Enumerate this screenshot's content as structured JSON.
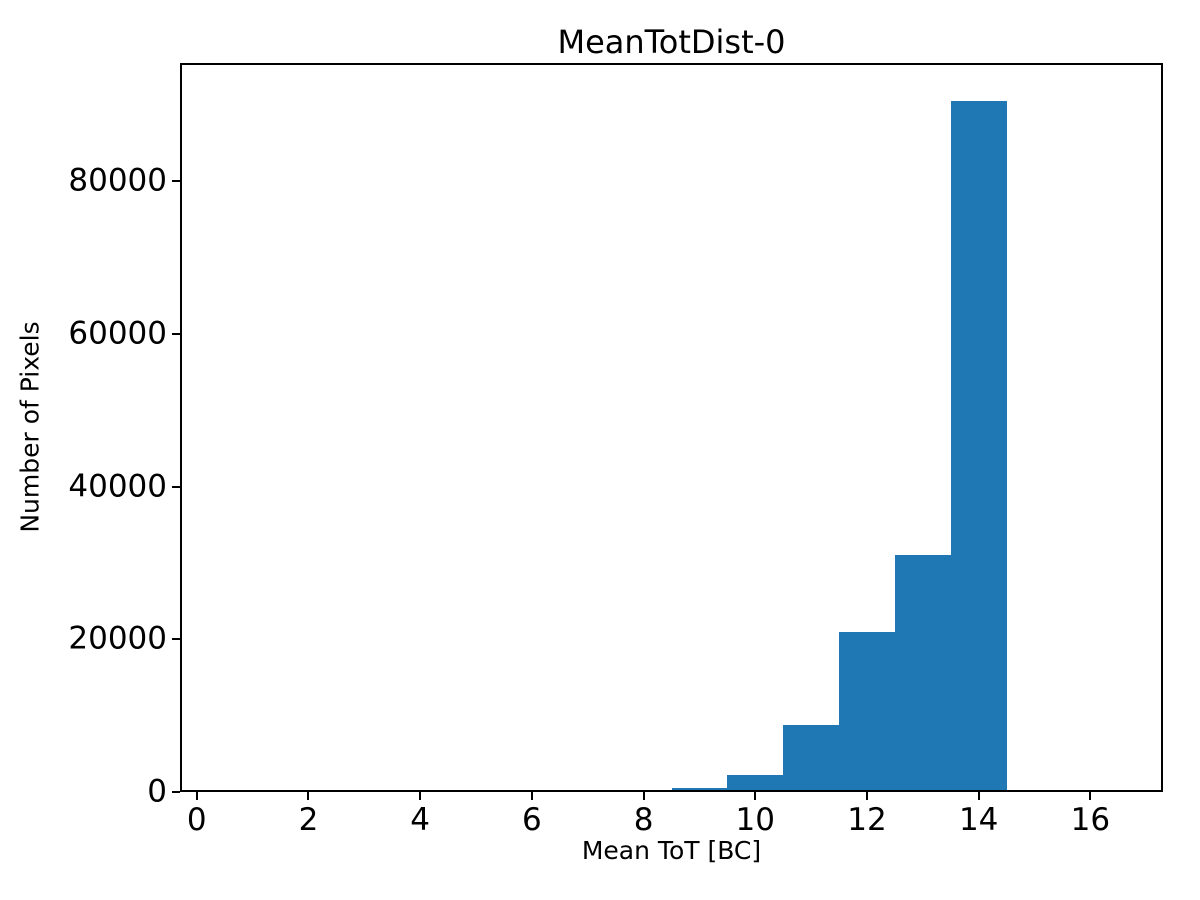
{
  "chart_data": {
    "type": "bar",
    "subtype": "histogram",
    "title": "MeanTotDist-0",
    "xlabel": "Mean ToT [BC]",
    "ylabel": "Number of Pixels",
    "bar_color": "#1f77b4",
    "background_color": "#ffffff",
    "axis_color": "#000000",
    "grid": false,
    "legend": null,
    "bin_edges": [
      0.5,
      1.5,
      2.5,
      3.5,
      4.5,
      5.5,
      6.5,
      7.5,
      8.5,
      9.5,
      10.5,
      11.5,
      12.5,
      13.5,
      14.5,
      15.5,
      16.5
    ],
    "counts": [
      0,
      0,
      0,
      0,
      0,
      0,
      0,
      260,
      550,
      2200,
      8800,
      20900,
      31000,
      90500,
      0,
      0
    ],
    "xlim": [
      -0.3,
      17.3
    ],
    "ylim": [
      0,
      95500
    ],
    "xticks": [
      0,
      2,
      4,
      6,
      8,
      10,
      12,
      14,
      16
    ],
    "yticks": [
      0,
      20000,
      40000,
      60000,
      80000
    ]
  }
}
